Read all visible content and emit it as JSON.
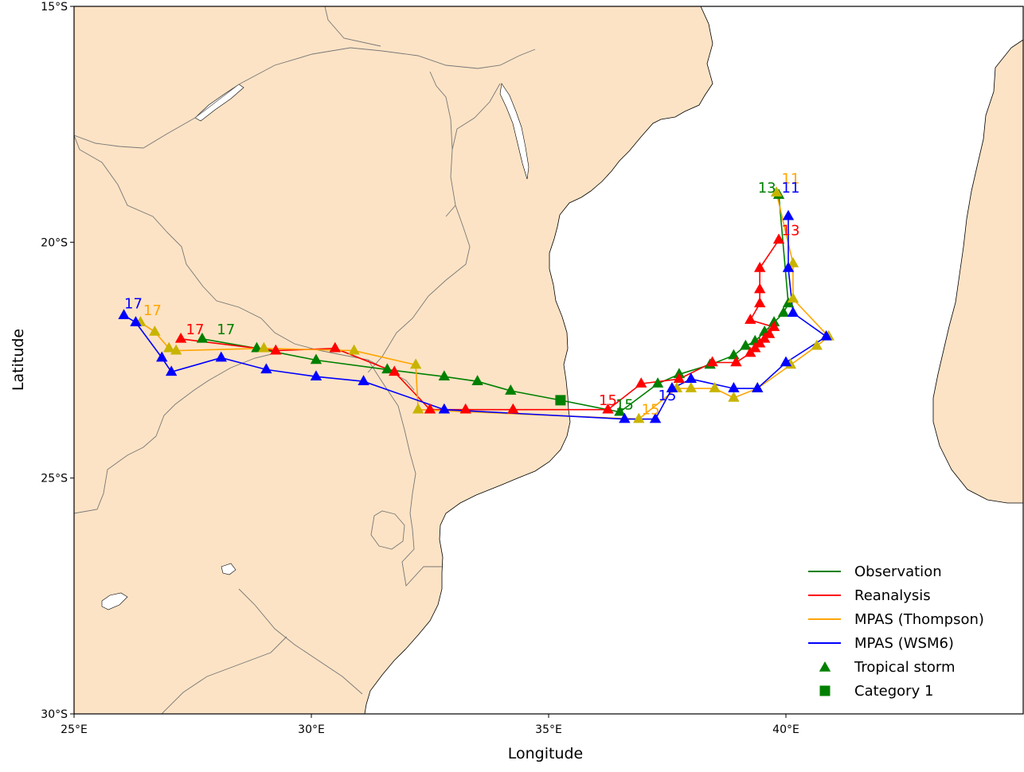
{
  "axes": {
    "xlabel": "Longitude",
    "ylabel": "Latitude",
    "x_ticks": [
      {
        "value": 25,
        "label": "25°E"
      },
      {
        "value": 30,
        "label": "30°E"
      },
      {
        "value": 35,
        "label": "35°E"
      },
      {
        "value": 40,
        "label": "40°E"
      }
    ],
    "y_ticks": [
      {
        "value": -15,
        "label": "15°S"
      },
      {
        "value": -20,
        "label": "20°S"
      },
      {
        "value": -25,
        "label": "25°S"
      },
      {
        "value": -30,
        "label": "30°S"
      }
    ]
  },
  "legend": {
    "entries": [
      {
        "label": "Observation",
        "kind": "line",
        "color": "#008000"
      },
      {
        "label": "Reanalysis",
        "kind": "line",
        "color": "#ff0000"
      },
      {
        "label": "MPAS (Thompson)",
        "kind": "line",
        "color": "#ffa500"
      },
      {
        "label": "MPAS (WSM6)",
        "kind": "line",
        "color": "#0000ff"
      },
      {
        "label": "Tropical storm",
        "kind": "triangle",
        "color": "#008000"
      },
      {
        "label": "Category 1",
        "kind": "square",
        "color": "#008000"
      }
    ]
  },
  "colors": {
    "land": "#fde3c5",
    "ocean": "#ffffff",
    "border": "#777777",
    "thompson_marker": "#c8b400"
  },
  "chart_data": {
    "type": "map-track",
    "xlim": [
      25,
      45
    ],
    "ylim": [
      -30,
      -15
    ],
    "legend_position": "lower-right",
    "series": [
      {
        "name": "Observation",
        "color": "#008000",
        "points": [
          [
            39.85,
            -19.0,
            "tri"
          ],
          [
            40.05,
            -21.3,
            "tri"
          ],
          [
            39.95,
            -21.5,
            "tri"
          ],
          [
            39.75,
            -21.7,
            "tri"
          ],
          [
            39.55,
            -21.9,
            "tri"
          ],
          [
            39.35,
            -22.1,
            "tri"
          ],
          [
            39.15,
            -22.2,
            "tri"
          ],
          [
            38.9,
            -22.4,
            "tri"
          ],
          [
            38.4,
            -22.6,
            "tri"
          ],
          [
            37.75,
            -22.8,
            "tri"
          ],
          [
            37.3,
            -23.0,
            "tri"
          ],
          [
            36.5,
            -23.6,
            "tri"
          ],
          [
            35.25,
            -23.35,
            "sq"
          ],
          [
            34.2,
            -23.15,
            "tri"
          ],
          [
            33.5,
            -22.95,
            "tri"
          ],
          [
            32.8,
            -22.85,
            "tri"
          ],
          [
            31.6,
            -22.7,
            "tri"
          ],
          [
            30.1,
            -22.5,
            "tri"
          ],
          [
            28.85,
            -22.25,
            "tri"
          ],
          [
            27.7,
            -22.05,
            "tri"
          ]
        ],
        "labels": [
          {
            "text": "13",
            "lon": 39.6,
            "lat": -18.95
          },
          {
            "text": "15",
            "lon": 36.6,
            "lat": -23.55
          },
          {
            "text": "17",
            "lon": 28.2,
            "lat": -21.95
          }
        ]
      },
      {
        "name": "Reanalysis",
        "color": "#ff0000",
        "points": [
          [
            39.85,
            -19.95,
            "tri"
          ],
          [
            39.45,
            -20.55,
            "tri"
          ],
          [
            39.45,
            -21.0,
            "tri"
          ],
          [
            39.45,
            -21.3,
            "tri"
          ],
          [
            39.25,
            -21.65,
            "tri"
          ],
          [
            39.75,
            -21.8,
            "tri"
          ],
          [
            39.65,
            -21.95,
            "tri"
          ],
          [
            39.55,
            -22.05,
            "tri"
          ],
          [
            39.45,
            -22.15,
            "tri"
          ],
          [
            39.35,
            -22.25,
            "tri"
          ],
          [
            39.25,
            -22.35,
            "tri"
          ],
          [
            38.95,
            -22.55,
            "tri"
          ],
          [
            38.45,
            -22.55,
            "tri"
          ],
          [
            37.75,
            -22.9,
            "tri"
          ],
          [
            36.95,
            -23.0,
            "tri"
          ],
          [
            36.25,
            -23.55,
            "tri"
          ],
          [
            34.25,
            -23.55,
            "tri"
          ],
          [
            33.25,
            -23.55,
            "tri"
          ],
          [
            32.5,
            -23.55,
            "tri"
          ],
          [
            31.75,
            -22.75,
            "tri"
          ],
          [
            30.5,
            -22.25,
            "tri"
          ],
          [
            29.25,
            -22.3,
            "tri"
          ],
          [
            27.25,
            -22.05,
            "tri"
          ]
        ],
        "labels": [
          {
            "text": "13",
            "lon": 40.1,
            "lat": -19.85
          },
          {
            "text": "15",
            "lon": 36.25,
            "lat": -23.45
          },
          {
            "text": "17",
            "lon": 27.55,
            "lat": -21.95
          }
        ]
      },
      {
        "name": "MPAS (Thompson)",
        "color": "#ffa500",
        "points": [
          [
            39.8,
            -18.95,
            "tri"
          ],
          [
            40.15,
            -20.45,
            "tri"
          ],
          [
            40.15,
            -21.2,
            "tri"
          ],
          [
            40.9,
            -22.0,
            "tri"
          ],
          [
            40.65,
            -22.2,
            "tri"
          ],
          [
            40.1,
            -22.6,
            "tri"
          ],
          [
            39.4,
            -23.1,
            "tri"
          ],
          [
            38.9,
            -23.3,
            "tri"
          ],
          [
            38.5,
            -23.1,
            "tri"
          ],
          [
            38.0,
            -23.1,
            "tri"
          ],
          [
            37.7,
            -23.1,
            "tri"
          ],
          [
            36.9,
            -23.75,
            "tri"
          ],
          [
            32.25,
            -23.55,
            "tri"
          ],
          [
            32.2,
            -22.6,
            "tri"
          ],
          [
            30.9,
            -22.3,
            "tri"
          ],
          [
            29.0,
            -22.25,
            "tri"
          ],
          [
            27.15,
            -22.3,
            "tri"
          ],
          [
            27.0,
            -22.25,
            "tri"
          ],
          [
            26.7,
            -21.9,
            "tri"
          ],
          [
            26.4,
            -21.7,
            "tri"
          ]
        ],
        "labels": [
          {
            "text": "11",
            "lon": 40.1,
            "lat": -18.75
          },
          {
            "text": "15",
            "lon": 37.15,
            "lat": -23.65
          },
          {
            "text": "17",
            "lon": 26.65,
            "lat": -21.55
          }
        ]
      },
      {
        "name": "MPAS (WSM6)",
        "color": "#0000ff",
        "points": [
          [
            40.05,
            -19.45,
            "tri"
          ],
          [
            40.05,
            -20.55,
            "tri"
          ],
          [
            40.15,
            -21.5,
            "tri"
          ],
          [
            40.85,
            -22.0,
            "tri"
          ],
          [
            40.0,
            -22.55,
            "tri"
          ],
          [
            39.4,
            -23.1,
            "tri"
          ],
          [
            38.9,
            -23.1,
            "tri"
          ],
          [
            38.0,
            -22.9,
            "tri"
          ],
          [
            37.6,
            -23.1,
            "tri"
          ],
          [
            37.25,
            -23.75,
            "tri"
          ],
          [
            36.6,
            -23.75,
            "tri"
          ],
          [
            32.8,
            -23.55,
            "tri"
          ],
          [
            31.1,
            -22.95,
            "tri"
          ],
          [
            30.1,
            -22.85,
            "tri"
          ],
          [
            29.05,
            -22.7,
            "tri"
          ],
          [
            28.1,
            -22.45,
            "tri"
          ],
          [
            27.05,
            -22.75,
            "tri"
          ],
          [
            26.85,
            -22.45,
            "tri"
          ],
          [
            26.3,
            -21.7,
            "tri"
          ],
          [
            26.05,
            -21.55,
            "tri"
          ]
        ],
        "labels": [
          {
            "text": "11",
            "lon": 40.1,
            "lat": -18.95
          },
          {
            "text": "15",
            "lon": 37.5,
            "lat": -23.35
          },
          {
            "text": "17",
            "lon": 26.25,
            "lat": -21.4
          }
        ]
      }
    ]
  }
}
